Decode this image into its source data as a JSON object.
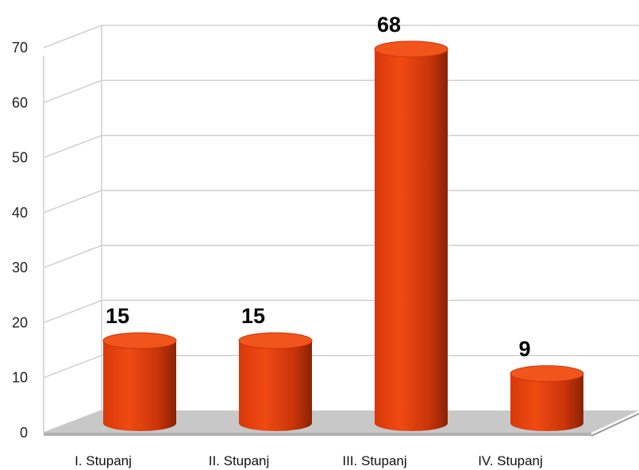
{
  "chart_data": {
    "type": "bar",
    "categories": [
      "I. Stupanj",
      "II. Stupanj",
      "III. Stupanj",
      "IV. Stupanj"
    ],
    "values": [
      15,
      15,
      68,
      9
    ],
    "data_labels": [
      "15",
      "15",
      "68",
      "9"
    ],
    "ylim": [
      0,
      70
    ],
    "yticks": [
      0,
      10,
      20,
      30,
      40,
      50,
      60,
      70
    ],
    "ytick_labels": [
      "0",
      "10",
      "20",
      "30",
      "40",
      "50",
      "60",
      "70"
    ],
    "grid": true,
    "bar_style": "3d-cylinder",
    "colors": {
      "bar": "#e8400c",
      "bar_dark": "#a82a06",
      "bar_top": "#f2551c",
      "floor": "#c8c8c8",
      "grid": "#cfcfcf"
    }
  }
}
